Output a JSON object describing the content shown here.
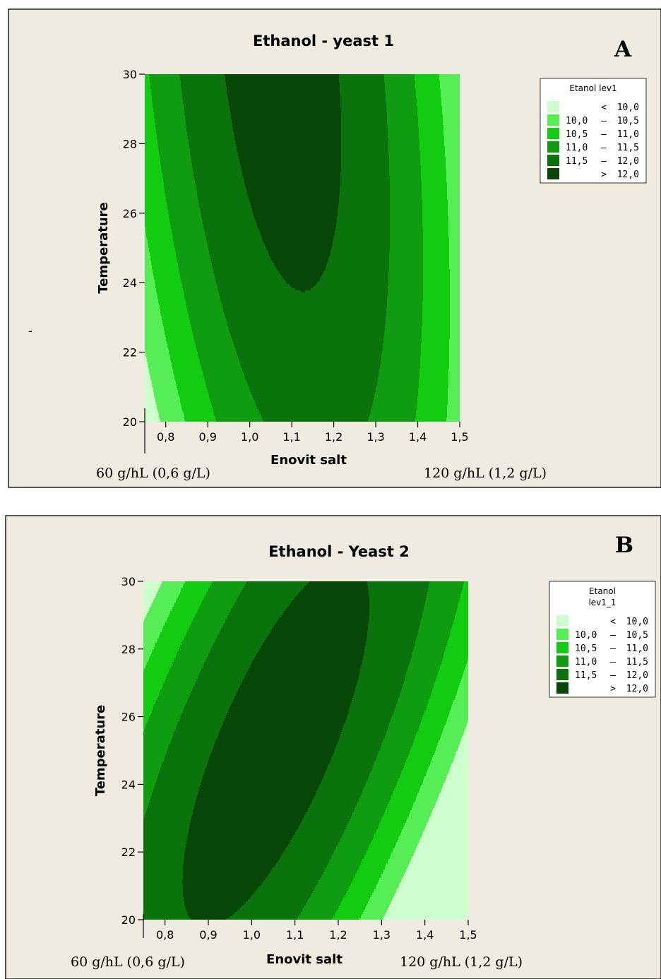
{
  "chart_data": [
    {
      "type": "contour",
      "panel_letter": "A",
      "title": "Ethanol - yeast 1",
      "xlabel": "Enovit salt",
      "ylabel": "Temperature",
      "xlim": [
        0.75,
        1.5
      ],
      "ylim": [
        20,
        30
      ],
      "x_ticks": [
        "0,8",
        "0,9",
        "1,0",
        "1,1",
        "1,2",
        "1,3",
        "1,4",
        "1,5"
      ],
      "x_tick_values": [
        0.8,
        0.9,
        1.0,
        1.1,
        1.2,
        1.3,
        1.4,
        1.5
      ],
      "y_ticks": [
        "20",
        "22",
        "24",
        "26",
        "28",
        "30"
      ],
      "y_tick_values": [
        20,
        22,
        24,
        26,
        28,
        30
      ],
      "annotation_left": "60 g/hL (0,6 g/L)",
      "annotation_right": "120 g/hL (1,2 g/L)",
      "stray_mark": "-",
      "model": {
        "a": 12.23,
        "b": 12.3,
        "c": 0.0055,
        "d": 0.2,
        "x0": 1.07,
        "y0": 30.75,
        "k": 0.0
      },
      "legend": {
        "title_lines": [
          "Etanol lev1"
        ],
        "levels": [
          {
            "low": "",
            "sym": "<",
            "high": "10,0",
            "color": "#ccffcc"
          },
          {
            "low": "10,0",
            "sym": "–",
            "high": "10,5",
            "color": "#55ee55"
          },
          {
            "low": "10,5",
            "sym": "–",
            "high": "11,0",
            "color": "#11cc11"
          },
          {
            "low": "11,0",
            "sym": "–",
            "high": "11,5",
            "color": "#109c10"
          },
          {
            "low": "11,5",
            "sym": "–",
            "high": "12,0",
            "color": "#0b730b"
          },
          {
            "low": "",
            "sym": ">",
            "high": "12,0",
            "color": "#064606"
          }
        ]
      }
    },
    {
      "type": "contour",
      "panel_letter": "B",
      "title": "Ethanol - Yeast 2",
      "xlabel": "Enovit salt",
      "ylabel": "Temperature",
      "xlim": [
        0.75,
        1.5
      ],
      "ylim": [
        20,
        30
      ],
      "x_ticks": [
        "0,8",
        "0,9",
        "1,0",
        "1,1",
        "1,2",
        "1,3",
        "1,4",
        "1,5"
      ],
      "x_tick_values": [
        0.8,
        0.9,
        1.0,
        1.1,
        1.2,
        1.3,
        1.4,
        1.5
      ],
      "y_ticks": [
        "20",
        "22",
        "24",
        "26",
        "28",
        "30"
      ],
      "y_tick_values": [
        20,
        22,
        24,
        26,
        28,
        30
      ],
      "annotation_left": "60 g/hL (0,6 g/L)",
      "annotation_right": "120 g/hL (1,2 g/L)",
      "model": {
        "a": 12.25,
        "b": 12.5,
        "c": 0.0085,
        "d": 0.0,
        "x0": 1.05,
        "y0": 25.2,
        "k": 0.03
      },
      "legend": {
        "title_lines": [
          "Etanol",
          "lev1_1"
        ],
        "levels": [
          {
            "low": "",
            "sym": "<",
            "high": "10,0",
            "color": "#ccffcc"
          },
          {
            "low": "10,0",
            "sym": "–",
            "high": "10,5",
            "color": "#55ee55"
          },
          {
            "low": "10,5",
            "sym": "–",
            "high": "11,0",
            "color": "#11cc11"
          },
          {
            "low": "11,0",
            "sym": "–",
            "high": "11,5",
            "color": "#109c10"
          },
          {
            "low": "11,5",
            "sym": "–",
            "high": "12,0",
            "color": "#0b730b"
          },
          {
            "low": "",
            "sym": ">",
            "high": "12,0",
            "color": "#064606"
          }
        ]
      }
    }
  ]
}
